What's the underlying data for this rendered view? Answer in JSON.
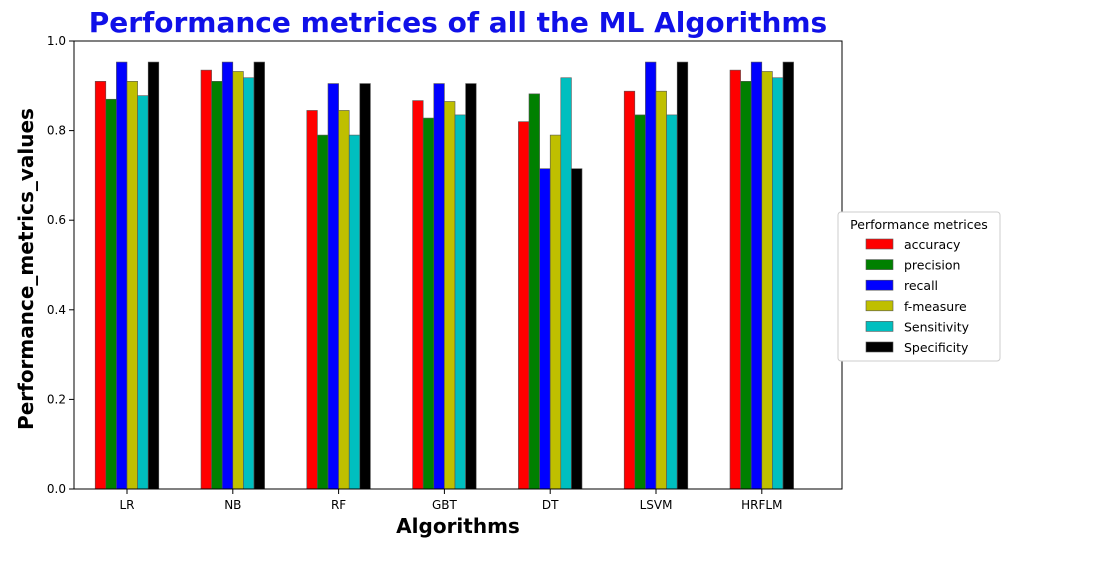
{
  "chart_data": {
    "type": "bar",
    "title": "Performance metrices of all the ML Algorithms",
    "title_color": "#1010e8",
    "xlabel": "Algorithms",
    "ylabel": "Performance_metrics_values",
    "ylim": [
      0.0,
      1.0
    ],
    "yticks": [
      "0.0",
      "0.2",
      "0.4",
      "0.6",
      "0.8",
      "1.0"
    ],
    "categories": [
      "LR",
      "NB",
      "RF",
      "GBT",
      "DT",
      "LSVM",
      "HRFLM"
    ],
    "grid": false,
    "legend_title": "Performance metrices",
    "legend_position": "center-right, outside plot",
    "series": [
      {
        "name": "accuracy",
        "color": "#ff0000",
        "values": [
          0.91,
          0.935,
          0.845,
          0.867,
          0.82,
          0.888,
          0.935
        ]
      },
      {
        "name": "precision",
        "color": "#008000",
        "values": [
          0.87,
          0.91,
          0.79,
          0.828,
          0.882,
          0.835,
          0.91
        ]
      },
      {
        "name": "recall",
        "color": "#0000ff",
        "values": [
          0.953,
          0.953,
          0.905,
          0.905,
          0.715,
          0.953,
          0.953
        ]
      },
      {
        "name": "f-measure",
        "color": "#bfbf00",
        "values": [
          0.91,
          0.932,
          0.845,
          0.865,
          0.79,
          0.888,
          0.932
        ]
      },
      {
        "name": "Sensitivity",
        "color": "#00bfbf",
        "values": [
          0.878,
          0.918,
          0.79,
          0.835,
          0.918,
          0.835,
          0.918
        ]
      },
      {
        "name": "Specificity",
        "color": "#000000",
        "values": [
          0.953,
          0.953,
          0.905,
          0.905,
          0.715,
          0.953,
          0.953
        ]
      }
    ]
  }
}
